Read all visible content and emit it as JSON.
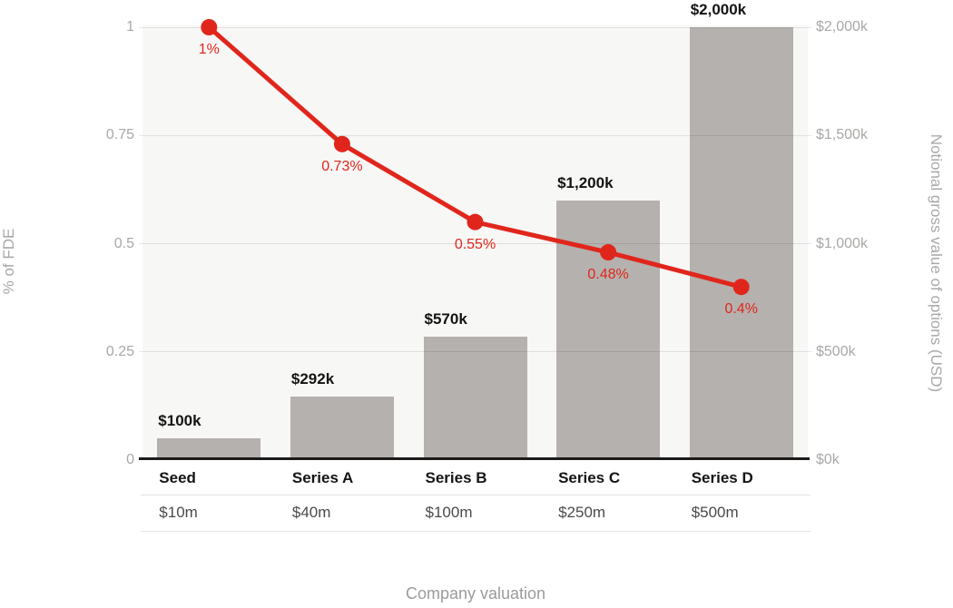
{
  "chart_data": {
    "type": "combo",
    "categories": [
      "Seed",
      "Series A",
      "Series B",
      "Series C",
      "Series D"
    ],
    "category_values": [
      "$10m",
      "$40m",
      "$100m",
      "$250m",
      "$500m"
    ],
    "series": [
      {
        "name": "Notional gross value of options (USD)",
        "type": "bar",
        "axis": "right",
        "values": [
          100,
          292,
          570,
          1200,
          2000
        ],
        "labels": [
          "$100k",
          "$292k",
          "$570k",
          "$1,200k",
          "$2,000k"
        ],
        "color": "#b5b1ae"
      },
      {
        "name": "% of FDE",
        "type": "line",
        "axis": "left",
        "values": [
          1,
          0.73,
          0.55,
          0.48,
          0.4
        ],
        "labels": [
          "1%",
          "0.73%",
          "0.55%",
          "0.48%",
          "0.4%"
        ],
        "color": "#e0261c"
      }
    ],
    "left_axis": {
      "title": "% of FDE",
      "ticks": [
        "0",
        "0.25",
        "0.5",
        "0.75",
        "1"
      ],
      "range": [
        0,
        1
      ]
    },
    "right_axis": {
      "title": "Notional gross value of options (USD)",
      "ticks": [
        "$0k",
        "$500k",
        "$1,000k",
        "$1,500k",
        "$2,000k"
      ],
      "range": [
        0,
        2000
      ]
    },
    "xlabel": "Company valuation",
    "grid": true,
    "legend": false
  },
  "colors": {
    "panel_background": "#f7f7f5",
    "bar": "#b5b1ae",
    "line": "#e0261c",
    "axis_text": "#a9a8a6",
    "dark_text": "#141414",
    "table_value_text": "#4b4a48",
    "footer_text": "#9c9b99"
  }
}
